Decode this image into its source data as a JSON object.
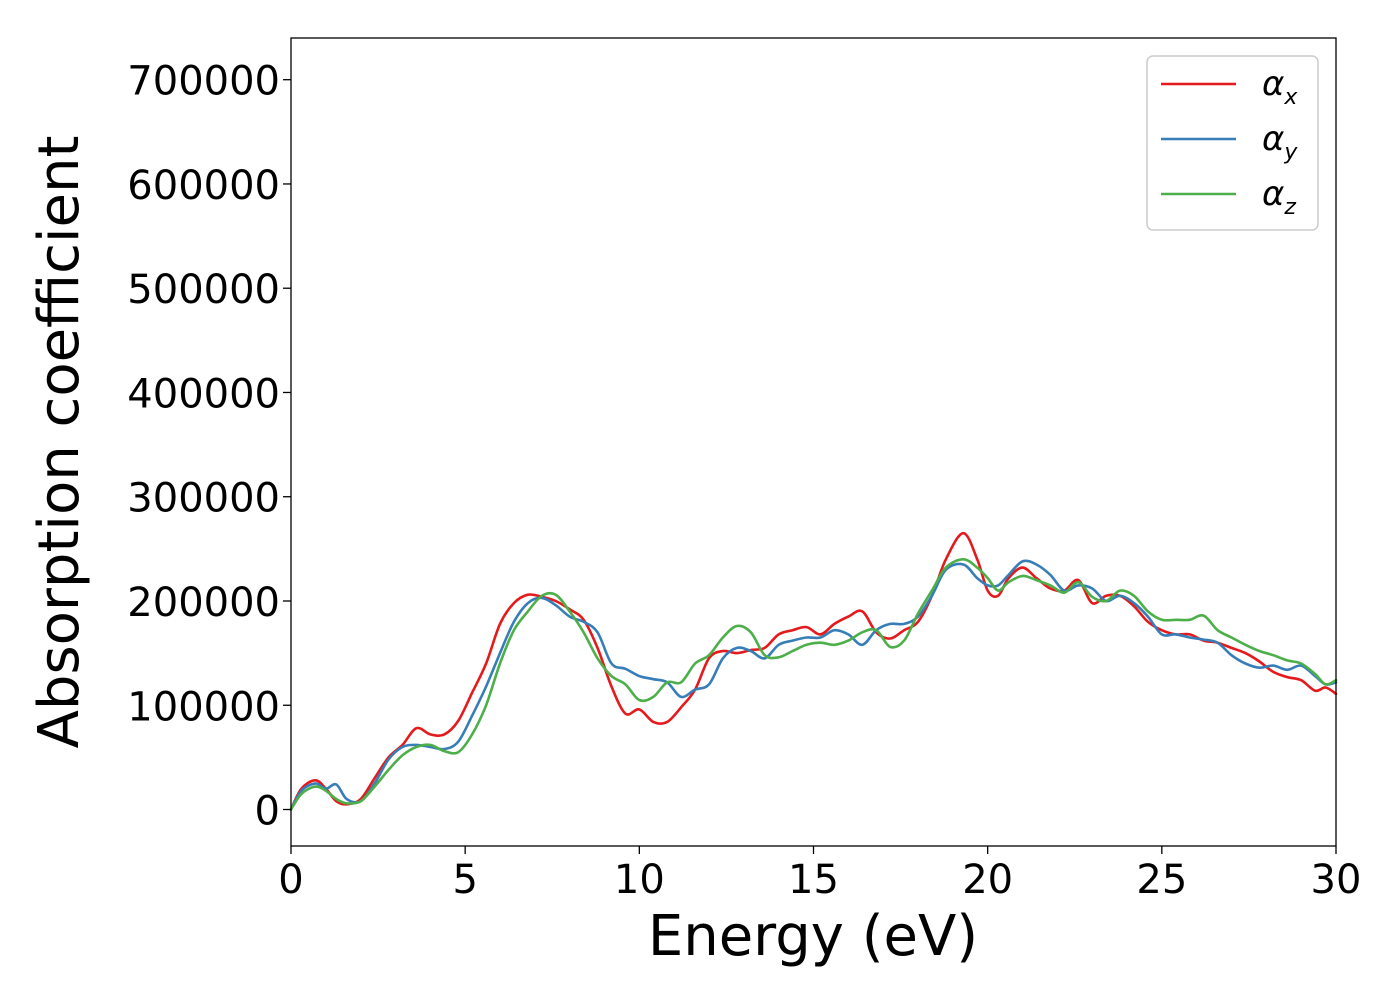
{
  "chart_data": {
    "type": "line",
    "title": "",
    "xlabel": "Energy (eV)",
    "ylabel": "Absorption coefficient",
    "xlim": [
      0,
      30
    ],
    "ylim": [
      -35000,
      740000
    ],
    "xticks": [
      0,
      5,
      10,
      15,
      20,
      25,
      30
    ],
    "yticks": [
      0,
      100000,
      200000,
      300000,
      400000,
      500000,
      600000,
      700000
    ],
    "xtick_labels": [
      "0",
      "5",
      "10",
      "15",
      "20",
      "25",
      "30"
    ],
    "ytick_labels": [
      "0",
      "100000",
      "200000",
      "300000",
      "400000",
      "500000",
      "600000",
      "700000"
    ],
    "grid": false,
    "legend_position": "top-right",
    "series": [
      {
        "name": "αx",
        "symbol": "α",
        "subscript": "x",
        "color": "#e41a1c",
        "x": [
          0,
          0.3,
          0.7,
          1.0,
          1.3,
          1.6,
          2.0,
          2.4,
          2.8,
          3.2,
          3.6,
          4.0,
          4.4,
          4.8,
          5.2,
          5.6,
          6.0,
          6.4,
          6.8,
          7.2,
          7.6,
          8.0,
          8.4,
          8.8,
          9.2,
          9.6,
          10.0,
          10.4,
          10.8,
          11.2,
          11.6,
          12.0,
          12.4,
          12.8,
          13.2,
          13.6,
          14.0,
          14.4,
          14.8,
          15.2,
          15.6,
          16.0,
          16.4,
          16.8,
          17.2,
          17.6,
          18.0,
          18.4,
          18.8,
          19.3,
          19.7,
          20.0,
          20.3,
          20.6,
          21.0,
          21.4,
          21.8,
          22.2,
          22.6,
          23.0,
          23.4,
          23.8,
          24.2,
          24.6,
          25.0,
          25.4,
          25.8,
          26.2,
          26.6,
          27.0,
          27.4,
          27.8,
          28.2,
          28.6,
          29.0,
          29.4,
          29.7,
          30.0
        ],
        "y": [
          0,
          20000,
          28000,
          20000,
          8000,
          5000,
          10000,
          30000,
          50000,
          62000,
          78000,
          72000,
          72000,
          85000,
          112000,
          140000,
          178000,
          198000,
          206000,
          204000,
          200000,
          192000,
          182000,
          155000,
          118000,
          92000,
          96000,
          84000,
          84000,
          98000,
          115000,
          145000,
          152000,
          150000,
          153000,
          155000,
          168000,
          172000,
          175000,
          168000,
          178000,
          185000,
          190000,
          170000,
          164000,
          172000,
          180000,
          205000,
          240000,
          265000,
          240000,
          210000,
          205000,
          222000,
          232000,
          222000,
          212000,
          210000,
          220000,
          198000,
          205000,
          205000,
          195000,
          180000,
          172000,
          168000,
          168000,
          162000,
          160000,
          155000,
          150000,
          142000,
          132000,
          127000,
          124000,
          114000,
          117000,
          111000
        ]
      },
      {
        "name": "αy",
        "symbol": "α",
        "subscript": "y",
        "color": "#377eb8",
        "x": [
          0,
          0.3,
          0.7,
          1.0,
          1.3,
          1.6,
          2.0,
          2.4,
          2.8,
          3.2,
          3.6,
          4.0,
          4.4,
          4.8,
          5.2,
          5.6,
          6.0,
          6.4,
          6.8,
          7.2,
          7.6,
          8.0,
          8.4,
          8.8,
          9.2,
          9.6,
          10.0,
          10.4,
          10.8,
          11.2,
          11.6,
          12.0,
          12.4,
          12.8,
          13.2,
          13.6,
          14.0,
          14.4,
          14.8,
          15.2,
          15.6,
          16.0,
          16.4,
          16.8,
          17.2,
          17.6,
          18.0,
          18.4,
          18.8,
          19.3,
          19.7,
          20.0,
          20.3,
          20.6,
          21.0,
          21.4,
          21.8,
          22.2,
          22.6,
          23.0,
          23.4,
          23.8,
          24.2,
          24.6,
          25.0,
          25.4,
          25.8,
          26.2,
          26.6,
          27.0,
          27.4,
          27.8,
          28.2,
          28.6,
          29.0,
          29.4,
          29.7,
          30.0
        ],
        "y": [
          0,
          18000,
          25000,
          20000,
          24000,
          10000,
          8000,
          25000,
          48000,
          60000,
          62000,
          60000,
          58000,
          65000,
          90000,
          118000,
          150000,
          180000,
          198000,
          203000,
          196000,
          185000,
          180000,
          170000,
          140000,
          135000,
          128000,
          125000,
          122000,
          108000,
          115000,
          120000,
          145000,
          155000,
          152000,
          145000,
          158000,
          162000,
          165000,
          165000,
          172000,
          168000,
          158000,
          172000,
          178000,
          178000,
          185000,
          205000,
          230000,
          235000,
          222000,
          215000,
          215000,
          225000,
          238000,
          235000,
          225000,
          210000,
          215000,
          212000,
          200000,
          205000,
          198000,
          185000,
          168000,
          168000,
          165000,
          163000,
          160000,
          148000,
          140000,
          136000,
          138000,
          134000,
          138000,
          128000,
          120000,
          122000
        ]
      },
      {
        "name": "αz",
        "symbol": "α",
        "subscript": "z",
        "color": "#4daf4a",
        "x": [
          0,
          0.3,
          0.7,
          1.0,
          1.3,
          1.6,
          2.0,
          2.4,
          2.8,
          3.2,
          3.6,
          4.0,
          4.4,
          4.8,
          5.2,
          5.6,
          6.0,
          6.4,
          6.8,
          7.2,
          7.6,
          8.0,
          8.4,
          8.8,
          9.2,
          9.6,
          10.0,
          10.4,
          10.8,
          11.2,
          11.6,
          12.0,
          12.4,
          12.8,
          13.2,
          13.6,
          14.0,
          14.4,
          14.8,
          15.2,
          15.6,
          16.0,
          16.4,
          16.8,
          17.2,
          17.6,
          18.0,
          18.4,
          18.8,
          19.3,
          19.7,
          20.0,
          20.3,
          20.6,
          21.0,
          21.4,
          21.8,
          22.2,
          22.6,
          23.0,
          23.4,
          23.8,
          24.2,
          24.6,
          25.0,
          25.4,
          25.8,
          26.2,
          26.6,
          27.0,
          27.4,
          27.8,
          28.2,
          28.6,
          29.0,
          29.4,
          29.7,
          30.0
        ],
        "y": [
          0,
          15000,
          22000,
          18000,
          10000,
          6000,
          8000,
          22000,
          38000,
          52000,
          60000,
          62000,
          56000,
          55000,
          72000,
          100000,
          140000,
          172000,
          190000,
          205000,
          206000,
          190000,
          170000,
          145000,
          128000,
          120000,
          105000,
          108000,
          122000,
          122000,
          140000,
          148000,
          165000,
          176000,
          170000,
          148000,
          146000,
          152000,
          158000,
          160000,
          158000,
          162000,
          170000,
          172000,
          156000,
          162000,
          188000,
          210000,
          232000,
          240000,
          232000,
          222000,
          210000,
          218000,
          224000,
          220000,
          215000,
          208000,
          218000,
          204000,
          200000,
          210000,
          205000,
          190000,
          182000,
          182000,
          182000,
          186000,
          172000,
          165000,
          158000,
          152000,
          148000,
          143000,
          140000,
          130000,
          120000,
          124000
        ]
      }
    ]
  }
}
